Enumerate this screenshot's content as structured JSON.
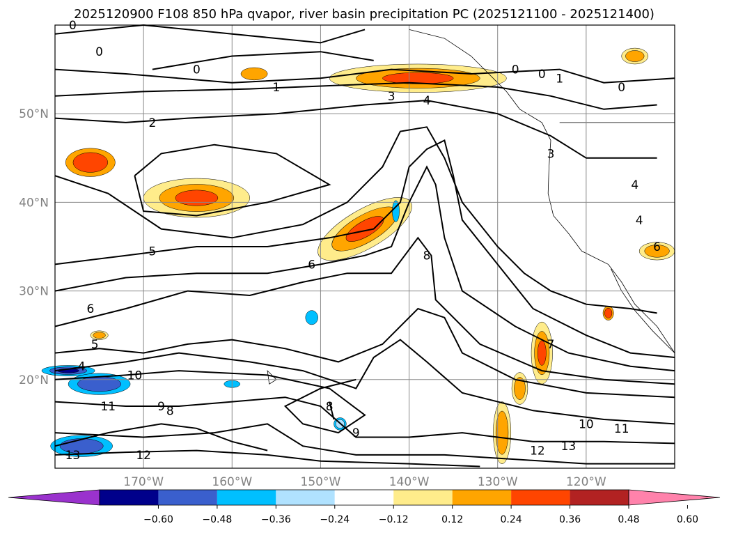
{
  "title": "2025120900 F108 850 hPa qvapor, river basin precipitation PC (2025121100 - 2025121400)",
  "chart_data": {
    "type": "contour-map",
    "projection": "lat-lon",
    "lon_range": [
      -180,
      -110
    ],
    "lat_range": [
      10,
      60
    ],
    "x_ticks": [
      "170°W",
      "160°W",
      "150°W",
      "140°W",
      "130°W",
      "120°W"
    ],
    "y_ticks": [
      "20°N",
      "30°N",
      "40°N",
      "50°N"
    ],
    "gridlines": true,
    "contour_field": "850 hPa qvapor",
    "contour_levels": [
      0,
      1,
      2,
      3,
      4,
      5,
      6,
      7,
      8,
      9,
      10,
      11,
      12,
      13
    ],
    "contour_labels": [
      {
        "text": "0",
        "lon": -178,
        "lat": 60
      },
      {
        "text": "0",
        "lon": -175,
        "lat": 57
      },
      {
        "text": "0",
        "lon": -164,
        "lat": 55
      },
      {
        "text": "0",
        "lon": -128,
        "lat": 55
      },
      {
        "text": "0",
        "lon": -125,
        "lat": 54.5
      },
      {
        "text": "0",
        "lon": -116,
        "lat": 53
      },
      {
        "text": "1",
        "lon": -155,
        "lat": 53
      },
      {
        "text": "1",
        "lon": -123,
        "lat": 54
      },
      {
        "text": "2",
        "lon": -169,
        "lat": 49
      },
      {
        "text": "3",
        "lon": -142,
        "lat": 52
      },
      {
        "text": "3",
        "lon": -124,
        "lat": 45.5
      },
      {
        "text": "4",
        "lon": -138,
        "lat": 51.5
      },
      {
        "text": "4",
        "lon": -114,
        "lat": 38
      },
      {
        "text": "4",
        "lon": -114.5,
        "lat": 42
      },
      {
        "text": "5",
        "lon": -169,
        "lat": 34.5
      },
      {
        "text": "5",
        "lon": -175.5,
        "lat": 24
      },
      {
        "text": "6",
        "lon": -151,
        "lat": 33
      },
      {
        "text": "6",
        "lon": -176,
        "lat": 28
      },
      {
        "text": "6",
        "lon": -112,
        "lat": 35
      },
      {
        "text": "4",
        "lon": -177,
        "lat": 21.5
      },
      {
        "text": "10",
        "lon": -171,
        "lat": 20.5
      },
      {
        "text": "7",
        "lon": -124,
        "lat": 24
      },
      {
        "text": "8",
        "lon": -138,
        "lat": 34
      },
      {
        "text": "8",
        "lon": -149,
        "lat": 17
      },
      {
        "text": "9",
        "lon": -168,
        "lat": 17
      },
      {
        "text": "8",
        "lon": -167,
        "lat": 16.5
      },
      {
        "text": "9",
        "lon": -146,
        "lat": 14
      },
      {
        "text": "10",
        "lon": -120,
        "lat": 15
      },
      {
        "text": "11",
        "lon": -174,
        "lat": 17
      },
      {
        "text": "11",
        "lon": -116,
        "lat": 14.5
      },
      {
        "text": "12",
        "lon": -170,
        "lat": 11.5
      },
      {
        "text": "12",
        "lon": -125.5,
        "lat": 12
      },
      {
        "text": "13",
        "lon": -178,
        "lat": 11.5
      },
      {
        "text": "13",
        "lon": -122,
        "lat": 12.5
      }
    ],
    "shading_field": "river basin precipitation PC",
    "colorbar": {
      "ticks": [
        "−0.60",
        "−0.48",
        "−0.36",
        "−0.24",
        "−0.12",
        "0.12",
        "0.24",
        "0.36",
        "0.48",
        "0.60"
      ],
      "colors": [
        "#9a32cd",
        "#00008b",
        "#3a5fcd",
        "#00bfff",
        "#b0e2ff",
        "#ffffff",
        "#ffec8b",
        "#ffa500",
        "#ff4500",
        "#b22222",
        "#ff82ab"
      ],
      "extend": "both"
    }
  }
}
